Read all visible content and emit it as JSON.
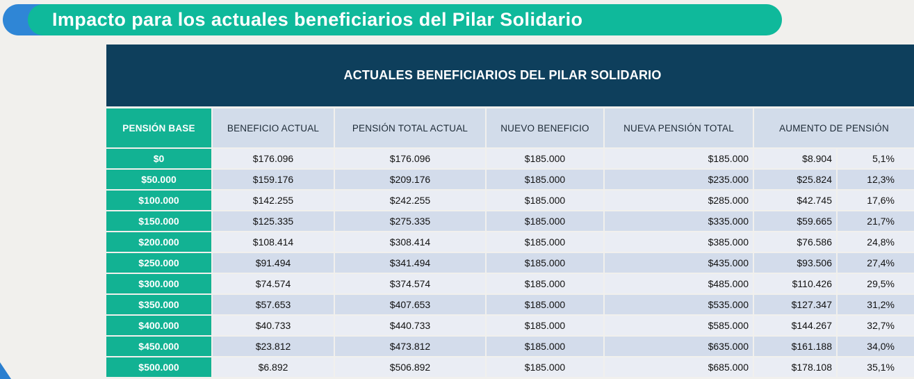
{
  "banner": {
    "title": "Impacto para los actuales beneficiarios del Pilar Solidario"
  },
  "table": {
    "title": "ACTUALES BENEFICIARIOS DEL PILAR SOLIDARIO",
    "headers": {
      "pension_base": "PENSIÓN BASE",
      "beneficio_actual": "BENEFICIO ACTUAL",
      "pension_total_actual": "PENSIÓN TOTAL ACTUAL",
      "nuevo_beneficio": "NUEVO BENEFICIO",
      "nueva_pension_total": "NUEVA PENSIÓN TOTAL",
      "aumento_pension": "AUMENTO DE PENSIÓN"
    },
    "rows": [
      {
        "base": "$0",
        "beneficio": "$176.096",
        "total_actual": "$176.096",
        "nuevo": "$185.000",
        "nueva_total": "$185.000",
        "aumento": "$8.904",
        "pct": "5,1%"
      },
      {
        "base": "$50.000",
        "beneficio": "$159.176",
        "total_actual": "$209.176",
        "nuevo": "$185.000",
        "nueva_total": "$235.000",
        "aumento": "$25.824",
        "pct": "12,3%"
      },
      {
        "base": "$100.000",
        "beneficio": "$142.255",
        "total_actual": "$242.255",
        "nuevo": "$185.000",
        "nueva_total": "$285.000",
        "aumento": "$42.745",
        "pct": "17,6%"
      },
      {
        "base": "$150.000",
        "beneficio": "$125.335",
        "total_actual": "$275.335",
        "nuevo": "$185.000",
        "nueva_total": "$335.000",
        "aumento": "$59.665",
        "pct": "21,7%"
      },
      {
        "base": "$200.000",
        "beneficio": "$108.414",
        "total_actual": "$308.414",
        "nuevo": "$185.000",
        "nueva_total": "$385.000",
        "aumento": "$76.586",
        "pct": "24,8%"
      },
      {
        "base": "$250.000",
        "beneficio": "$91.494",
        "total_actual": "$341.494",
        "nuevo": "$185.000",
        "nueva_total": "$435.000",
        "aumento": "$93.506",
        "pct": "27,4%"
      },
      {
        "base": "$300.000",
        "beneficio": "$74.574",
        "total_actual": "$374.574",
        "nuevo": "$185.000",
        "nueva_total": "$485.000",
        "aumento": "$110.426",
        "pct": "29,5%"
      },
      {
        "base": "$350.000",
        "beneficio": "$57.653",
        "total_actual": "$407.653",
        "nuevo": "$185.000",
        "nueva_total": "$535.000",
        "aumento": "$127.347",
        "pct": "31,2%"
      },
      {
        "base": "$400.000",
        "beneficio": "$40.733",
        "total_actual": "$440.733",
        "nuevo": "$185.000",
        "nueva_total": "$585.000",
        "aumento": "$144.267",
        "pct": "32,7%"
      },
      {
        "base": "$450.000",
        "beneficio": "$23.812",
        "total_actual": "$473.812",
        "nuevo": "$185.000",
        "nueva_total": "$635.000",
        "aumento": "$161.188",
        "pct": "34,0%"
      },
      {
        "base": "$500.000",
        "beneficio": "$6.892",
        "total_actual": "$506.892",
        "nuevo": "$185.000",
        "nueva_total": "$685.000",
        "aumento": "$178.108",
        "pct": "35,1%"
      }
    ]
  },
  "colors": {
    "banner_green": "#0fb99b",
    "banner_blue": "#2f86d6",
    "header_navy": "#0e3f5c",
    "base_column_teal": "#12b293"
  }
}
